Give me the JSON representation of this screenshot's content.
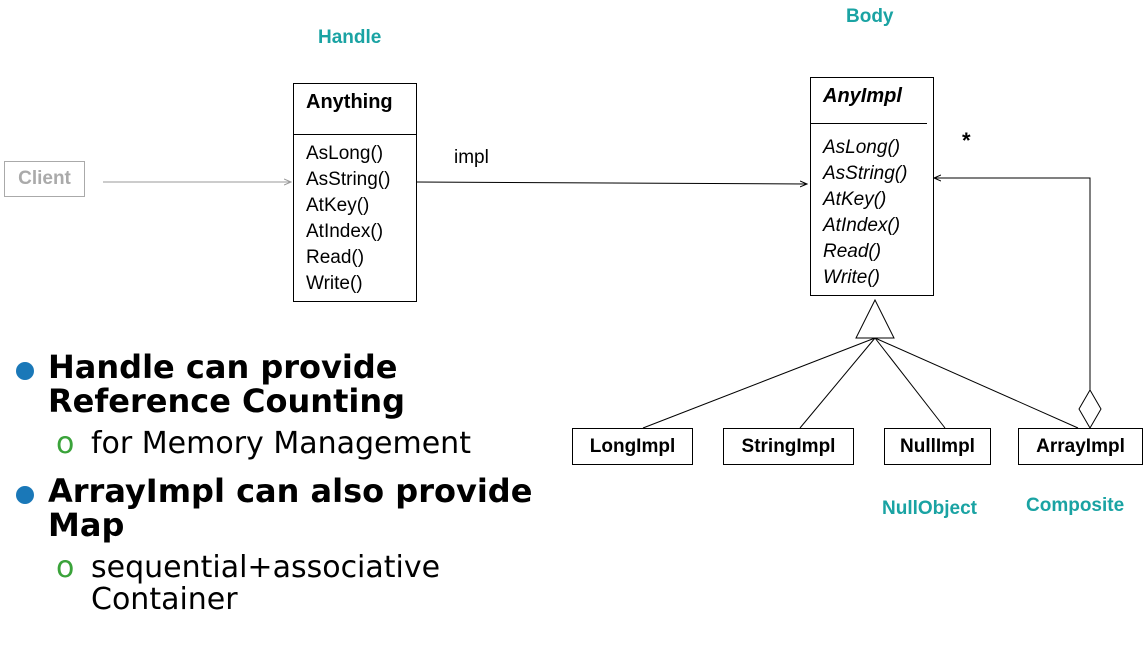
{
  "roles": {
    "handle": "Handle",
    "body": "Body",
    "null_object": "NullObject",
    "composite": "Composite"
  },
  "client": {
    "label": "Client"
  },
  "anything": {
    "name": "Anything",
    "operations": [
      "AsLong()",
      "AsString()",
      "AtKey()",
      "AtIndex()",
      "Read()",
      "Write()"
    ]
  },
  "anyimpl": {
    "name": "AnyImpl",
    "operations": [
      "AsLong()",
      "AsString()",
      "AtKey()",
      "AtIndex()",
      "Read()",
      "Write()"
    ]
  },
  "association": {
    "label": "impl",
    "multiplicity": "*"
  },
  "subclasses": [
    "LongImpl",
    "StringImpl",
    "NullImpl",
    "ArrayImpl"
  ],
  "bullets": [
    {
      "text": "Handle can provide Reference Counting",
      "sub": "for Memory Management"
    },
    {
      "text": "ArrayImpl can also provide Map",
      "sub": "sequential+associative Container"
    }
  ],
  "colors": {
    "role": "#1aa3a3",
    "bullet": "#1a78b8",
    "sub_bullet": "#3aa33a",
    "client": "#aaaaaa"
  }
}
